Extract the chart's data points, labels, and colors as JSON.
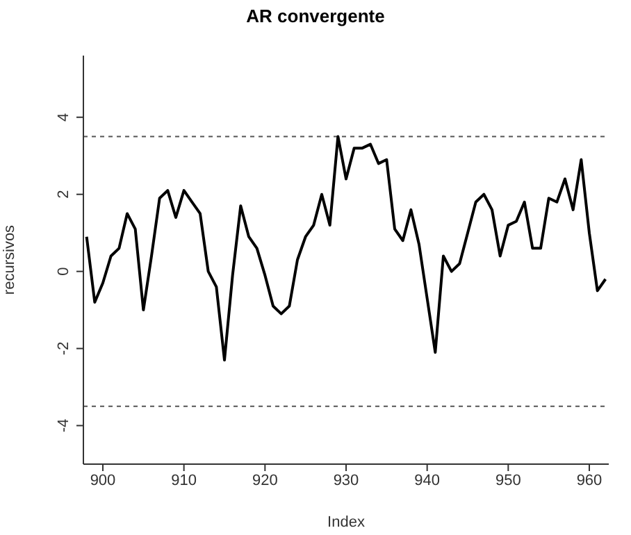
{
  "chart_data": {
    "type": "line",
    "title": "AR convergente",
    "xlabel": "Index",
    "ylabel": "recursivos",
    "x": [
      898,
      899,
      900,
      901,
      902,
      903,
      904,
      905,
      906,
      907,
      908,
      909,
      910,
      911,
      912,
      913,
      914,
      915,
      916,
      917,
      918,
      919,
      920,
      921,
      922,
      923,
      924,
      925,
      926,
      927,
      928,
      929,
      930,
      931,
      932,
      933,
      934,
      935,
      936,
      937,
      938,
      939,
      940,
      941,
      942,
      943,
      944,
      945,
      946,
      947,
      948,
      949,
      950,
      951,
      952,
      953,
      954,
      955,
      956,
      957,
      958,
      959,
      960,
      961,
      962
    ],
    "series": [
      {
        "color": "#000000",
        "values": [
          0.9,
          -0.8,
          -0.3,
          0.4,
          0.6,
          1.5,
          1.1,
          -1.0,
          0.4,
          1.9,
          2.1,
          1.4,
          2.1,
          1.8,
          1.5,
          0.0,
          -0.4,
          -2.3,
          -0.1,
          1.7,
          0.9,
          0.6,
          -0.1,
          -0.9,
          -1.1,
          -0.9,
          0.3,
          0.9,
          1.2,
          2.0,
          1.2,
          3.5,
          2.4,
          3.2,
          3.2,
          3.3,
          2.8,
          2.9,
          1.1,
          0.8,
          1.6,
          0.7,
          -0.7,
          -2.1,
          0.4,
          0.0,
          0.2,
          1.0,
          1.8,
          2.0,
          1.6,
          0.4,
          1.2,
          1.3,
          1.8,
          0.6,
          0.6,
          1.9,
          1.8,
          2.4,
          1.6,
          2.9,
          1.0,
          -0.5,
          -0.2
        ]
      }
    ],
    "xlim": [
      897.6,
      962.4
    ],
    "ylim": [
      -5,
      5.6
    ],
    "xticks": [
      900,
      910,
      920,
      930,
      940,
      950,
      960
    ],
    "yticks": [
      -4,
      -2,
      0,
      2,
      4
    ],
    "ref_lines": [
      {
        "axis": "y",
        "value": 3.5,
        "color": "#555555",
        "line_style": "dashed"
      },
      {
        "axis": "y",
        "value": -3.5,
        "color": "#555555",
        "line_style": "dashed"
      }
    ],
    "grid": false,
    "legend": false,
    "marker": "none",
    "line_style": "solid"
  }
}
